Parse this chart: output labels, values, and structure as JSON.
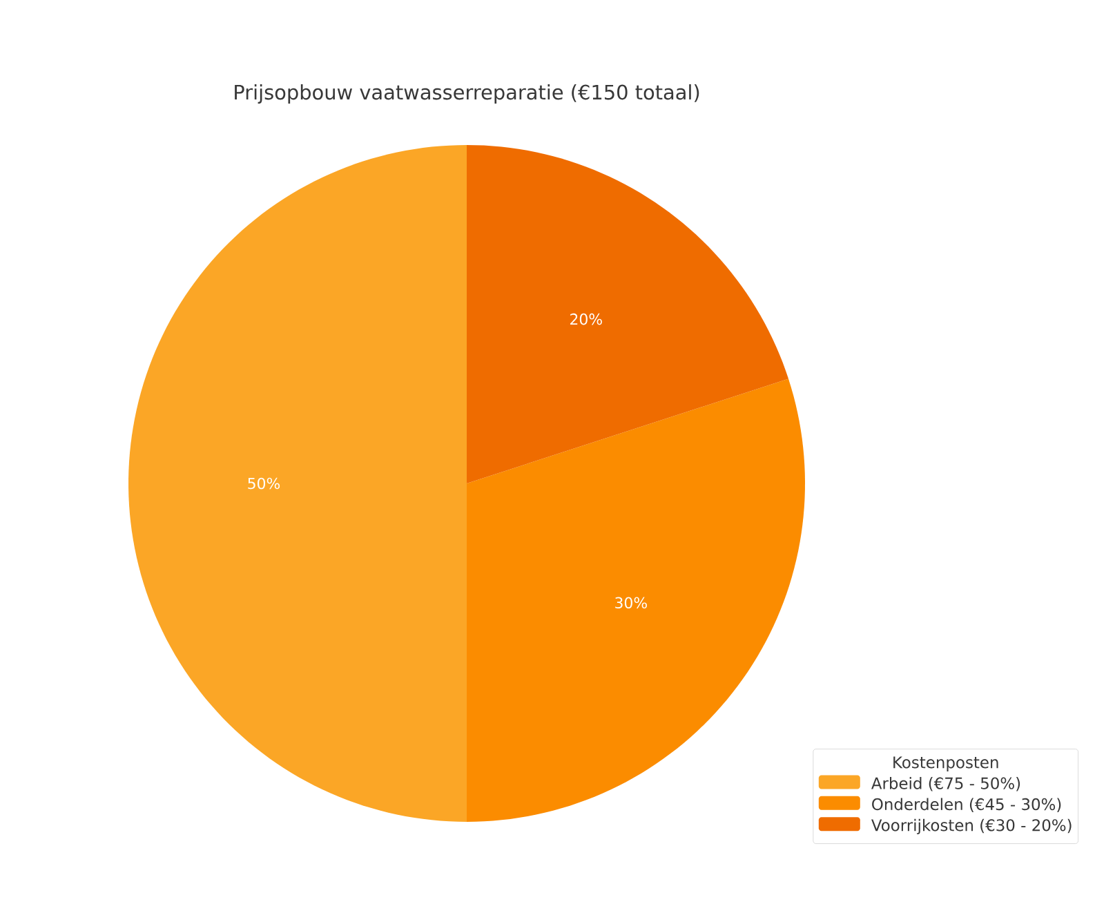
{
  "chart_data": {
    "type": "pie",
    "title": "Prijsopbouw vaatwasserreparatie (€150 totaal)",
    "categories": [
      "Arbeid (€75 - 50%)",
      "Onderdelen (€45 - 30%)",
      "Voorrijkosten (€30 - 20%)"
    ],
    "values": [
      50,
      30,
      20
    ],
    "value_labels": [
      "50%",
      "30%",
      "20%"
    ],
    "colors": [
      "#fba626",
      "#fb8c00",
      "#ef6c00"
    ],
    "legend_title": "Kostenposten",
    "legend": "bottom right"
  }
}
